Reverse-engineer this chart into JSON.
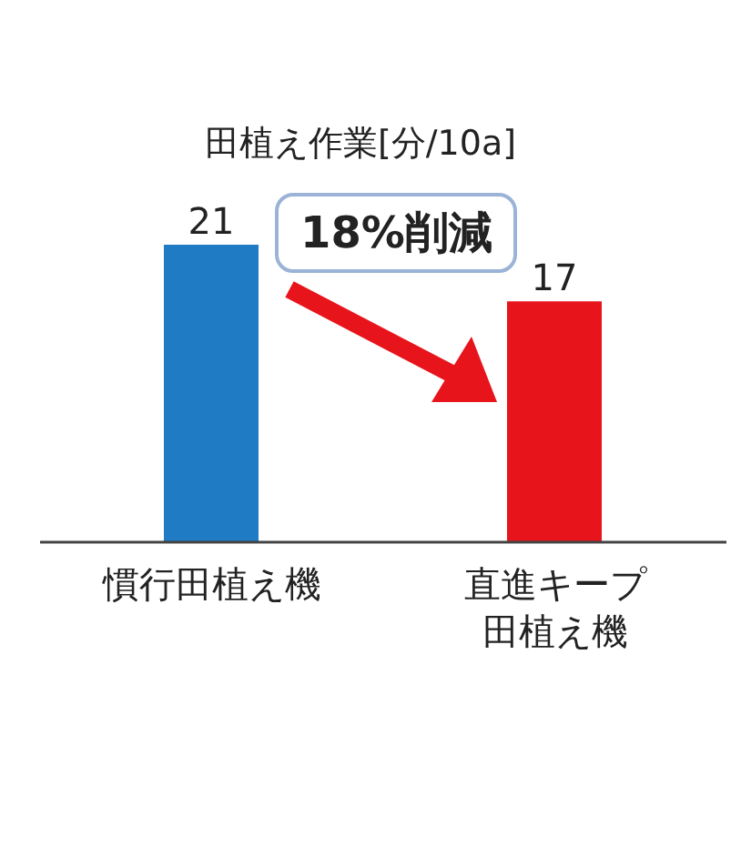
{
  "chart_data": {
    "type": "bar",
    "title": "田植え作業[分/10a]",
    "categories": [
      "慣行田植え機",
      "直進キープ田植え機"
    ],
    "values": [
      21,
      17
    ],
    "colors": [
      "#1f7bc4",
      "#e8141b"
    ],
    "data_labels": true,
    "annotations": [
      "18%削減"
    ]
  }
}
